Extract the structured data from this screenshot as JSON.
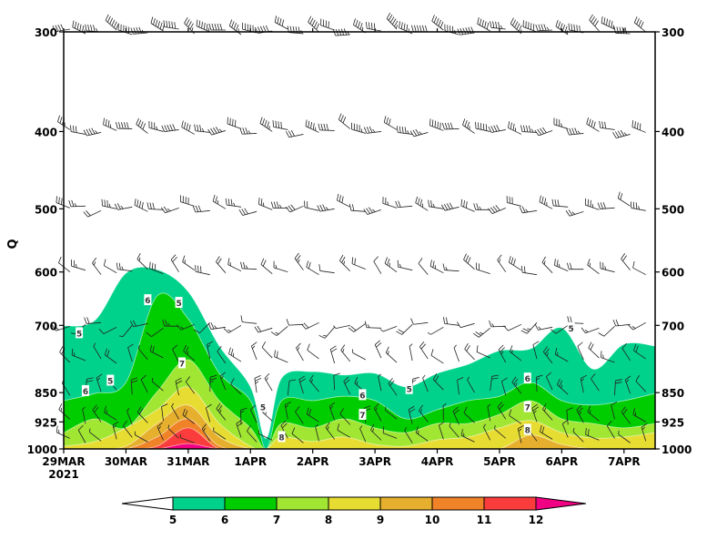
{
  "chart_data": {
    "type": "heatmap",
    "subtype": "time-pressure filled contour with wind barbs",
    "ylabel": "Q",
    "y_scale": "log",
    "y_inverted": true,
    "ylim": [
      1000,
      300
    ],
    "y_ticks": [
      300,
      400,
      500,
      600,
      700,
      850,
      925,
      1000
    ],
    "y_tick_labels": [
      "300",
      "400",
      "500",
      "600",
      "700",
      "850",
      "925",
      "1000"
    ],
    "x_unit": "days since 29MAR2021 00Z",
    "xlim": [
      0,
      9.5
    ],
    "x_ticks": [
      0,
      1,
      2,
      3,
      4,
      5,
      6,
      7,
      8,
      9
    ],
    "x_tick_labels": [
      "29MAR",
      "30MAR",
      "31MAR",
      "1APR",
      "2APR",
      "3APR",
      "4APR",
      "5APR",
      "6APR",
      "7APR"
    ],
    "x_sublabel": "2021",
    "levels": [
      5,
      6,
      7,
      8,
      9,
      10,
      11,
      12
    ],
    "colors": [
      "#00d28c",
      "#00cd00",
      "#a0e632",
      "#e6dc32",
      "#e6af2d",
      "#f08228",
      "#fa3c3c",
      "#f00082"
    ],
    "contour_times": [
      0,
      0.5,
      1,
      1.5,
      2,
      2.5,
      3,
      3.25,
      3.5,
      4,
      4.5,
      5,
      5.5,
      6,
      6.5,
      7,
      7.5,
      8,
      8.5,
      9,
      9.5
    ],
    "contour_top_pressure": {
      "5": [
        701,
        690,
        602,
        596,
        635,
        743,
        836,
        970,
        815,
        800,
        808,
        804,
        836,
        804,
        783,
        753,
        749,
        705,
        794,
        739,
        743
      ],
      "6": [
        870,
        852,
        825,
        643,
        687,
        804,
        870,
        1000,
        870,
        870,
        859,
        870,
        917,
        893,
        870,
        859,
        825,
        870,
        881,
        870,
        852
      ],
      "7": [
        954,
        917,
        941,
        848,
        773,
        870,
        941,
        1000,
        929,
        941,
        917,
        941,
        954,
        929,
        929,
        905,
        870,
        917,
        929,
        941,
        929
      ],
      "8": [
        992,
        979,
        941,
        893,
        836,
        929,
        992,
        1000,
        966,
        979,
        966,
        987,
        992,
        974,
        966,
        941,
        921,
        954,
        969,
        966,
        954
      ],
      "9": [
        1000,
        1000,
        992,
        929,
        881,
        966,
        1000,
        1000,
        1000,
        1000,
        1000,
        1000,
        1000,
        1000,
        1000,
        1000,
        961,
        987,
        1000,
        1000,
        1000
      ],
      "10": [
        1000,
        1000,
        1000,
        966,
        917,
        992,
        1000,
        1000,
        1000,
        1000,
        1000,
        1000,
        1000,
        1000,
        1000,
        1000,
        1000,
        1000,
        1000,
        1000,
        1000
      ],
      "11": [
        1000,
        1000,
        1000,
        992,
        941,
        1000,
        1000,
        1000,
        1000,
        1000,
        1000,
        1000,
        1000,
        1000,
        1000,
        1000,
        1000,
        1000,
        1000,
        1000,
        1000
      ],
      "12": [
        1000,
        1000,
        1000,
        1000,
        985,
        1000,
        1000,
        1000,
        1000,
        1000,
        1000,
        1000,
        1000,
        1000,
        1000,
        1000,
        1000,
        1000,
        1000,
        1000,
        1000
      ]
    },
    "contour_labels": [
      {
        "text": "5",
        "t": 0.25,
        "p": 715
      },
      {
        "text": "5",
        "t": 0.75,
        "p": 820
      },
      {
        "text": "6",
        "t": 0.35,
        "p": 845
      },
      {
        "text": "6",
        "t": 1.35,
        "p": 650
      },
      {
        "text": "5",
        "t": 1.85,
        "p": 655
      },
      {
        "text": "7",
        "t": 1.9,
        "p": 780
      },
      {
        "text": "5",
        "t": 3.2,
        "p": 885
      },
      {
        "text": "8",
        "t": 3.5,
        "p": 965
      },
      {
        "text": "6",
        "t": 4.8,
        "p": 855
      },
      {
        "text": "7",
        "t": 4.8,
        "p": 905
      },
      {
        "text": "5",
        "t": 5.55,
        "p": 840
      },
      {
        "text": "6",
        "t": 7.45,
        "p": 815
      },
      {
        "text": "7",
        "t": 7.45,
        "p": 885
      },
      {
        "text": "8",
        "t": 7.45,
        "p": 945
      },
      {
        "text": "5",
        "t": 8.15,
        "p": 705
      }
    ],
    "wind_barbs": [
      {
        "p": 300,
        "dir_deg": 290,
        "speed_kt": 50
      },
      {
        "p": 400,
        "dir_deg": 280,
        "speed_kt": 40
      },
      {
        "p": 500,
        "dir_deg": 275,
        "speed_kt": 30
      },
      {
        "p": 600,
        "dir_deg": 300,
        "speed_kt": 20
      },
      {
        "p": 700,
        "dir_deg": 250,
        "speed_kt": 15
      },
      {
        "p": 775,
        "dir_deg": 320,
        "speed_kt": 15
      },
      {
        "p": 850,
        "dir_deg": 340,
        "speed_kt": 15
      },
      {
        "p": 925,
        "dir_deg": 330,
        "speed_kt": 15
      },
      {
        "p": 975,
        "dir_deg": 320,
        "speed_kt": 10
      }
    ],
    "colorbar": {
      "tick_labels": [
        "5",
        "6",
        "7",
        "8",
        "9",
        "10",
        "11",
        "12"
      ],
      "extend": "both",
      "below_color": "#ffffff",
      "above_color": "#f00082"
    }
  }
}
